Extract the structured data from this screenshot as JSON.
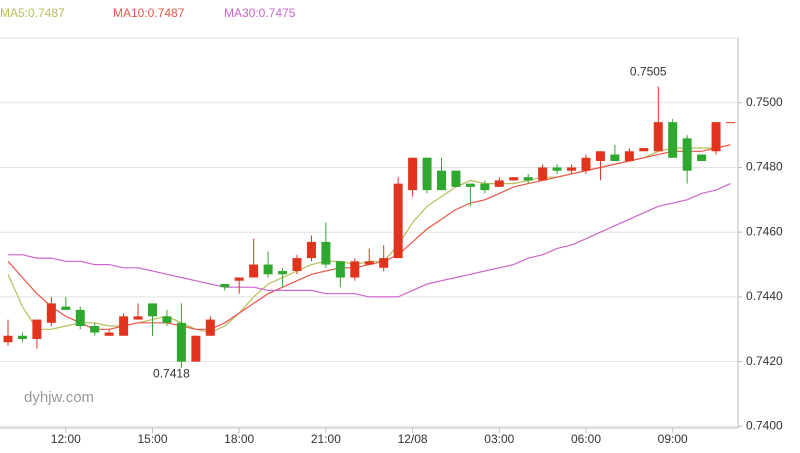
{
  "chart_data": {
    "type": "candlestick",
    "categories": [
      null,
      null,
      null,
      null,
      "12:00",
      null,
      null,
      null,
      null,
      null,
      "15:00",
      null,
      null,
      null,
      null,
      null,
      "18:00",
      null,
      null,
      null,
      null,
      null,
      "21:00",
      null,
      null,
      null,
      null,
      null,
      "12/08",
      null,
      null,
      null,
      null,
      null,
      "03:00",
      null,
      null,
      null,
      null,
      null,
      "06:00",
      null,
      null,
      null,
      null,
      null,
      "09:00",
      null,
      null,
      null,
      null
    ],
    "open": [
      0.7426,
      0.7428,
      0.7427,
      0.7432,
      0.7437,
      0.7436,
      0.7431,
      0.7428,
      0.7428,
      0.7433,
      0.7438,
      0.7434,
      0.7432,
      0.742,
      0.7428,
      0.7444,
      0.7445,
      0.7446,
      0.745,
      0.7448,
      0.7448,
      0.7452,
      0.7457,
      0.7451,
      0.7446,
      0.745,
      0.7449,
      0.7452,
      0.7473,
      0.7483,
      0.7479,
      0.7479,
      0.7475,
      0.7475,
      0.7474,
      0.7476,
      0.7477,
      0.7476,
      0.748,
      0.7479,
      0.7479,
      0.7482,
      0.7484,
      0.7482,
      0.7485,
      0.7485,
      0.7494,
      0.7489,
      0.7484,
      0.7485,
      0.7494
    ],
    "high": [
      0.7433,
      0.7429,
      0.7433,
      0.744,
      0.744,
      0.7437,
      0.7432,
      0.743,
      0.7435,
      0.7438,
      0.7438,
      0.7436,
      0.7438,
      0.7428,
      0.7434,
      0.7444,
      0.7446,
      0.7458,
      0.7454,
      0.7449,
      0.7453,
      0.7459,
      0.7463,
      0.7451,
      0.7452,
      0.7455,
      0.7456,
      0.7477,
      0.7483,
      0.7483,
      0.7483,
      0.7479,
      0.7475,
      0.7476,
      0.7477,
      0.7477,
      0.7478,
      0.7481,
      0.7481,
      0.7481,
      0.7484,
      0.7485,
      0.7487,
      0.7486,
      0.7486,
      0.7505,
      0.7495,
      0.749,
      0.7484,
      0.7494,
      0.7494
    ],
    "low": [
      0.7425,
      0.7426,
      0.7424,
      0.7431,
      0.7436,
      0.743,
      0.7428,
      0.7428,
      0.7428,
      0.7433,
      0.7428,
      0.7431,
      0.7418,
      0.742,
      0.7428,
      0.7442,
      0.7441,
      0.7446,
      0.7446,
      0.7443,
      0.7447,
      0.7451,
      0.7449,
      0.7443,
      0.7445,
      0.745,
      0.7448,
      0.7452,
      0.7471,
      0.7472,
      0.7473,
      0.7474,
      0.7468,
      0.7472,
      0.7474,
      0.7476,
      0.7475,
      0.7476,
      0.7478,
      0.7478,
      0.7478,
      0.7476,
      0.7482,
      0.7482,
      0.7485,
      0.7485,
      0.7483,
      0.7475,
      0.7482,
      0.7484,
      0.7494
    ],
    "close": [
      0.7428,
      0.7427,
      0.7433,
      0.7438,
      0.7436,
      0.7431,
      0.7429,
      0.7429,
      0.7434,
      0.7434,
      0.7434,
      0.7432,
      0.742,
      0.7428,
      0.7433,
      0.7443,
      0.7446,
      0.745,
      0.7447,
      0.7447,
      0.7452,
      0.7457,
      0.745,
      0.7446,
      0.7451,
      0.7451,
      0.7452,
      0.7475,
      0.7483,
      0.7473,
      0.7473,
      0.7474,
      0.7474,
      0.7473,
      0.7476,
      0.7477,
      0.7476,
      0.748,
      0.7479,
      0.748,
      0.7483,
      0.7485,
      0.7482,
      0.7485,
      0.7486,
      0.7494,
      0.7483,
      0.7479,
      0.7482,
      0.7494,
      0.7494
    ],
    "up_color": "#e2331f",
    "down_color": "#2fa82f",
    "series": [
      {
        "name": "MA5:0.7487",
        "color": "#b9bc58",
        "values": [
          0.7447,
          0.7437,
          0.743,
          0.743,
          0.7431,
          0.7432,
          0.7432,
          0.7431,
          0.7431,
          0.7432,
          0.7433,
          0.7434,
          0.7432,
          0.743,
          0.7429,
          0.7431,
          0.7435,
          0.744,
          0.7444,
          0.7446,
          0.7448,
          0.745,
          0.7451,
          0.7451,
          0.745,
          0.7451,
          0.7451,
          0.7456,
          0.7463,
          0.7468,
          0.7471,
          0.7474,
          0.7476,
          0.7475,
          0.7475,
          0.7475,
          0.7476,
          0.7477,
          0.7477,
          0.7478,
          0.7479,
          0.748,
          0.7481,
          0.7482,
          0.7483,
          0.7485,
          0.7486,
          0.7486,
          0.7486,
          0.7486,
          0.7487
        ]
      },
      {
        "name": "MA10:0.7487",
        "color": "#e9574a",
        "values": [
          0.7451,
          0.7446,
          0.7441,
          0.7437,
          0.7434,
          0.7432,
          0.743,
          0.743,
          0.7431,
          0.7432,
          0.7432,
          0.7432,
          0.7431,
          0.743,
          0.743,
          0.7432,
          0.7435,
          0.7438,
          0.7441,
          0.7443,
          0.7445,
          0.7447,
          0.7448,
          0.7449,
          0.7449,
          0.745,
          0.7451,
          0.7453,
          0.7457,
          0.7461,
          0.7464,
          0.7467,
          0.7469,
          0.747,
          0.7472,
          0.7474,
          0.7475,
          0.7476,
          0.7477,
          0.7478,
          0.7479,
          0.748,
          0.7481,
          0.7482,
          0.7483,
          0.7484,
          0.7485,
          0.7485,
          0.7485,
          0.7486,
          0.7487
        ]
      },
      {
        "name": "MA30:0.7475",
        "color": "#cc66cc",
        "values": [
          0.7453,
          0.7453,
          0.7452,
          0.7452,
          0.7451,
          0.7451,
          0.745,
          0.745,
          0.7449,
          0.7449,
          0.7448,
          0.7447,
          0.7446,
          0.7445,
          0.7444,
          0.7443,
          0.7443,
          0.7443,
          0.7442,
          0.7442,
          0.7442,
          0.7442,
          0.7441,
          0.7441,
          0.7441,
          0.744,
          0.744,
          0.744,
          0.7442,
          0.7444,
          0.7445,
          0.7446,
          0.7447,
          0.7448,
          0.7449,
          0.745,
          0.7452,
          0.7453,
          0.7455,
          0.7456,
          0.7458,
          0.746,
          0.7462,
          0.7464,
          0.7466,
          0.7468,
          0.7469,
          0.747,
          0.7472,
          0.7473,
          0.7475
        ]
      }
    ],
    "ylim": [
      0.73995,
      0.752
    ],
    "yticks": [
      {
        "value": 0.74,
        "label": "0.7400"
      },
      {
        "value": 0.742,
        "label": "0.7420"
      },
      {
        "value": 0.744,
        "label": "0.7440"
      },
      {
        "value": 0.746,
        "label": "0.7460"
      },
      {
        "value": 0.748,
        "label": "0.7480"
      },
      {
        "value": 0.75,
        "label": "0.7500"
      }
    ],
    "grid": true,
    "annotations": {
      "max_label": "0.7505",
      "min_label": "0.7418",
      "watermark": "dyhjw.com"
    }
  }
}
